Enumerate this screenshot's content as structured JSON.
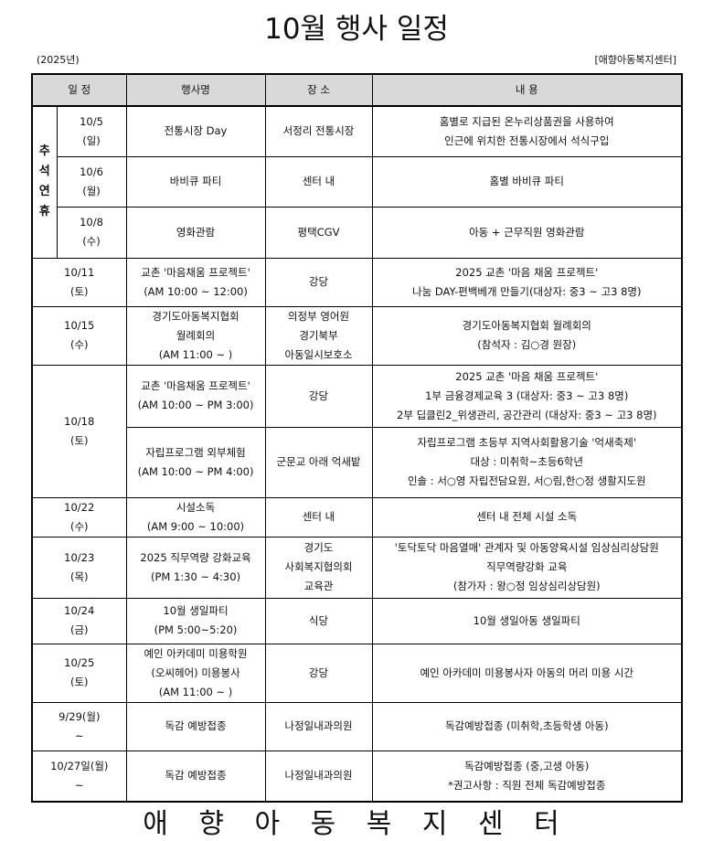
{
  "title": "10월 행사 일정",
  "year": "(2025년)",
  "org": "[애향아동복지센터]",
  "headers": [
    "일 정",
    "행사명",
    "장 소",
    "내 용"
  ],
  "holiday_label": [
    "추",
    "석",
    "연",
    "휴"
  ],
  "holiday_rows": [
    {
      "date": [
        "10/5",
        "(일)"
      ],
      "event": [
        "전통시장 Day"
      ],
      "place": [
        "서정리 전통시장"
      ],
      "content": [
        "홈별로 지급된 온누리상품권을 사용하여",
        "인근에 위치한 전통시장에서 석식구입"
      ]
    },
    {
      "date": [
        "10/6",
        "(월)"
      ],
      "event": [
        "바비큐 파티"
      ],
      "place": [
        "센터 내"
      ],
      "content": [
        "홈별 바비큐 파티"
      ]
    },
    {
      "date": [
        "10/8",
        "(수)"
      ],
      "event": [
        "영화관람"
      ],
      "place": [
        "평택CGV"
      ],
      "content": [
        "아동 + 근무직원 영화관람"
      ]
    }
  ],
  "rows": [
    {
      "date": [
        "10/11",
        "(토)"
      ],
      "event": [
        "교촌 '마음채움 프로젝트'",
        "(AM 10:00 ~ 12:00)"
      ],
      "place": [
        "강당"
      ],
      "content": [
        "2025 교촌 '마음 채움 프로젝트'",
        "나눔 DAY-편백베개 만들기(대상자: 중3 ~ 고3 8명)"
      ]
    },
    {
      "date": [
        "10/15",
        "(수)"
      ],
      "event": [
        "경기도아동복지협회",
        "월례회의",
        "(AM 11:00 ~ )"
      ],
      "place": [
        "의정부 영어원",
        "경기북부",
        "아동일시보호소"
      ],
      "content": [
        "경기도아동복지협회 월례회의",
        "(참석자 : 김○경 원장)"
      ]
    },
    {
      "date": [
        "10/18",
        "(토)"
      ],
      "event": [
        "교촌 '마음채움 프로젝트'",
        "(AM 10:00 ~ PM 3:00)"
      ],
      "place": [
        "강당"
      ],
      "content": [
        "2025 교촌 '마음 채움 프로젝트'",
        "1부 금융경제교육 3 (대상자: 중3 ~ 고3 8명)",
        "2부 딥클린2_위생관리, 공간관리 (대상자: 중3 ~ 고3 8명)"
      ]
    },
    {
      "event": [
        "자립프로그램 외부체험",
        "(AM 10:00 ~ PM 4:00)"
      ],
      "place": [
        "군문교 아래 억새밭"
      ],
      "content": [
        "자립프로그램 초등부 지역사회활용기술 '억새축제'",
        "대상 : 미취학~초등6학년",
        "인솔 : 서○영 자립전담요원, 서○림,한○정 생활지도원"
      ]
    },
    {
      "date": [
        "10/22",
        "(수)"
      ],
      "event": [
        "시설소독",
        "(AM 9:00 ~ 10:00)"
      ],
      "place": [
        "센터 내"
      ],
      "content": [
        "센터 내 전체 시설 소독"
      ]
    },
    {
      "date": [
        "10/23",
        "(목)"
      ],
      "event": [
        "2025 직무역량 강화교육",
        "(PM 1:30 ~ 4:30)"
      ],
      "place": [
        "경기도",
        "사회복지협의회",
        "교육관"
      ],
      "content": [
        "'토닥토닥 마음열매' 관계자 및 아동양육시설 임상심리상담원",
        "직무역량강화 교육",
        "(참가자 : 왕○정 임상심리상담원)"
      ]
    },
    {
      "date": [
        "10/24",
        "(금)"
      ],
      "event": [
        "10월 생일파티",
        "(PM 5:00~5:20)"
      ],
      "place": [
        "식당"
      ],
      "content": [
        "10월 생일아동 생일파티"
      ]
    },
    {
      "date": [
        "10/25",
        "(토)"
      ],
      "event": [
        "예인 아카데미 미용학원",
        "(오씨헤어) 미용봉사",
        "(AM 11:00 ~ )"
      ],
      "place": [
        "강당"
      ],
      "content": [
        "예인 아카데미 미용봉사자 아동의 머리 미용 시간"
      ]
    },
    {
      "date": [
        "9/29(월)",
        "~"
      ],
      "event": [
        "독감 예방접종"
      ],
      "place": [
        "나정일내과의원"
      ],
      "content": [
        "독감예방접종 (미취학,초등학생 아동)"
      ]
    },
    {
      "date": [
        "10/27일(월)",
        "~"
      ],
      "event": [
        "독감 예방접종"
      ],
      "place": [
        "나정일내과의원"
      ],
      "content": [
        "독감예방접종 (중,고생 아동)",
        "*권고사항 : 직원 전체 독감예방접종"
      ]
    }
  ],
  "footer": "애 향 아 동 복 지 센 터"
}
